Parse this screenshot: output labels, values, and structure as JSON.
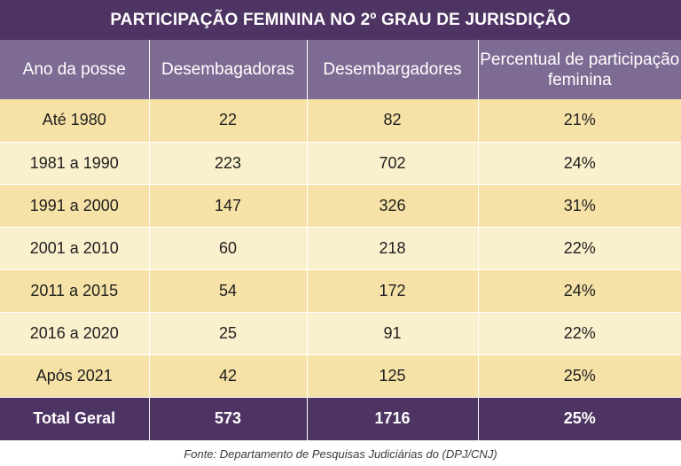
{
  "colors": {
    "title_bg": "#4e3462",
    "header_bg": "#7e6b93",
    "row_dark": "#f6e2a6",
    "row_light": "#fbf0cd",
    "footer_bg": "#4e3462"
  },
  "chart_data": {
    "type": "table",
    "title": "PARTICIPAÇÃO FEMININA NO 2º GRAU DE JURISDIÇÃO",
    "columns": [
      "Ano da posse",
      "Desembagadoras",
      "Desembargadores",
      "Percentual de participação feminina"
    ],
    "rows": [
      [
        "Até 1980",
        "22",
        "82",
        "21%"
      ],
      [
        "1981 a 1990",
        "223",
        "702",
        "24%"
      ],
      [
        "1991 a 2000",
        "147",
        "326",
        "31%"
      ],
      [
        "2001 a 2010",
        "60",
        "218",
        "22%"
      ],
      [
        "2011 a 2015",
        "54",
        "172",
        "24%"
      ],
      [
        "2016 a 2020",
        "25",
        "91",
        "22%"
      ],
      [
        "Após 2021",
        "42",
        "125",
        "25%"
      ]
    ],
    "total": [
      "Total Geral",
      "573",
      "1716",
      "25%"
    ],
    "source": "Fonte: Departamento de Pesquisas Judiciárias do (DPJ/CNJ)"
  }
}
